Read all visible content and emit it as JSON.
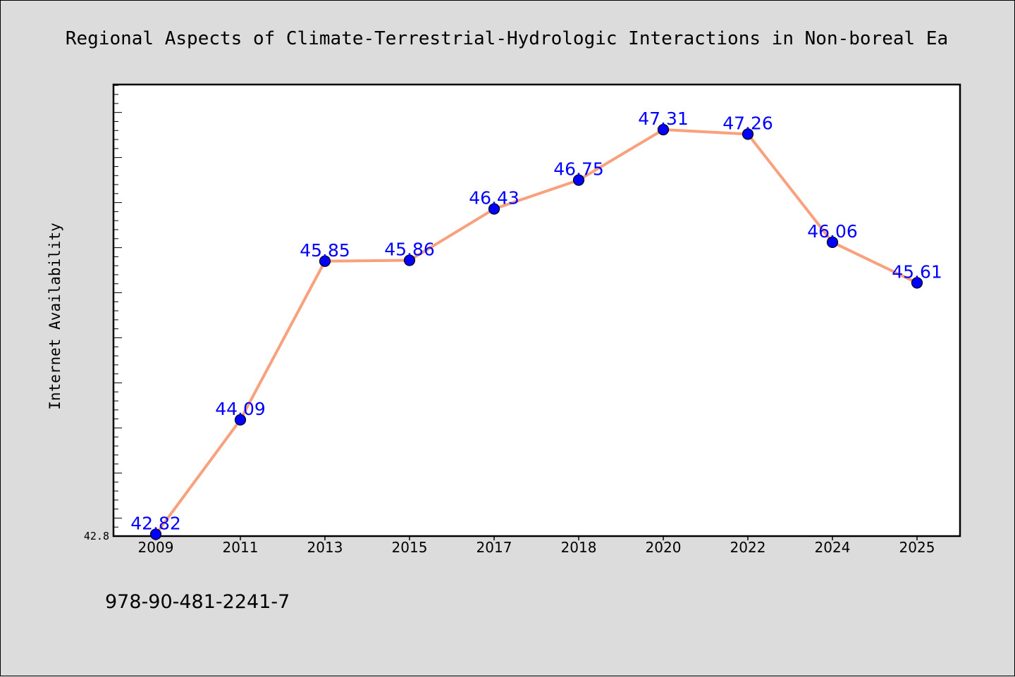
{
  "chart_data": {
    "type": "line",
    "title": "Regional Aspects of Climate-Terrestrial-Hydrologic Interactions in Non-boreal Ea",
    "xlabel": "",
    "ylabel": "Internet Availability",
    "categories": [
      "2009",
      "2011",
      "2013",
      "2015",
      "2017",
      "2018",
      "2020",
      "2022",
      "2024",
      "2025"
    ],
    "series": [
      {
        "values": [
          42.82,
          44.09,
          45.85,
          45.86,
          46.43,
          46.75,
          47.31,
          47.26,
          46.06,
          45.61
        ]
      }
    ],
    "data_labels": [
      "42.82",
      "44.09",
      "45.85",
      "45.86",
      "46.43",
      "46.75",
      "47.31",
      "47.26",
      "46.06",
      "45.61"
    ],
    "ytick_labels": [
      "42.8"
    ],
    "ylim": [
      42.8,
      47.81
    ],
    "grid": false,
    "colors": {
      "line": "#f9a07d",
      "marker": "#0000ff",
      "data_label": "#0000ff",
      "background": "#dcdcdc",
      "plot_area": "#ffffff"
    }
  },
  "footer": {
    "isbn": "978-90-481-2241-7"
  }
}
